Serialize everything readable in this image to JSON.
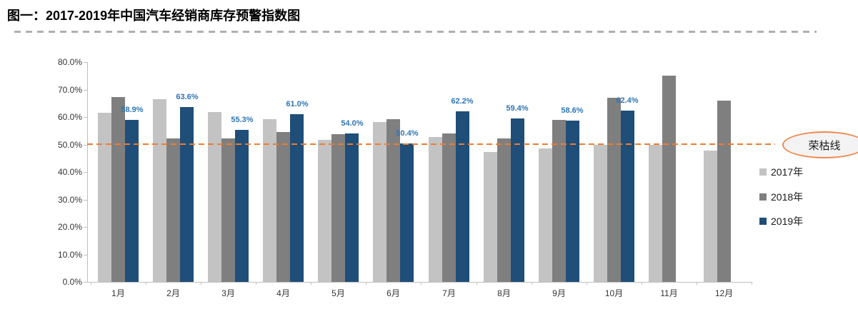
{
  "header": {
    "title": "图一：2017-2019年中国汽车经销商库存预警指数图"
  },
  "chart_data": {
    "type": "bar",
    "title": "图一：2017-2019年中国汽车经销商库存预警指数图",
    "xlabel": "",
    "ylabel": "",
    "categories": [
      "1月",
      "2月",
      "3月",
      "4月",
      "5月",
      "6月",
      "7月",
      "8月",
      "9月",
      "10月",
      "11月",
      "12月"
    ],
    "series": [
      {
        "name": "2017年",
        "color": "#C3C3C3",
        "values": [
          61.6,
          66.6,
          61.9,
          59.2,
          51.8,
          58.2,
          52.6,
          47.2,
          48.7,
          49.9,
          49.8,
          47.7
        ]
      },
      {
        "name": "2018年",
        "color": "#7F7F7F",
        "values": [
          67.2,
          52.3,
          52.1,
          54.6,
          53.7,
          59.2,
          53.9,
          52.2,
          58.9,
          66.9,
          75.1,
          66.1
        ]
      },
      {
        "name": "2019年",
        "color": "#1F4E79",
        "label_color": "#2E75B6",
        "values": [
          58.9,
          63.6,
          55.3,
          61.0,
          54.0,
          50.4,
          62.2,
          59.4,
          58.6,
          62.4,
          null,
          null
        ],
        "data_labels": [
          "58.9%",
          "63.6%",
          "55.3%",
          "61.0%",
          "54.0%",
          "50.4%",
          "62.2%",
          "59.4%",
          "58.6%",
          "62.4%",
          "",
          ""
        ]
      }
    ],
    "ylim": [
      0,
      80
    ],
    "y_ticks": [
      "0.0%",
      "10.0%",
      "20.0%",
      "30.0%",
      "40.0%",
      "50.0%",
      "60.0%",
      "70.0%",
      "80.0%"
    ],
    "grid": false,
    "legend_position": "right",
    "benchmark": {
      "value": 50,
      "label": "荣枯线",
      "line_color": "#ED7D31"
    }
  },
  "legend": {
    "items": [
      {
        "label": "2017年",
        "color": "#C3C3C3"
      },
      {
        "label": "2018年",
        "color": "#7F7F7F"
      },
      {
        "label": "2019年",
        "color": "#1F4E79"
      }
    ]
  }
}
